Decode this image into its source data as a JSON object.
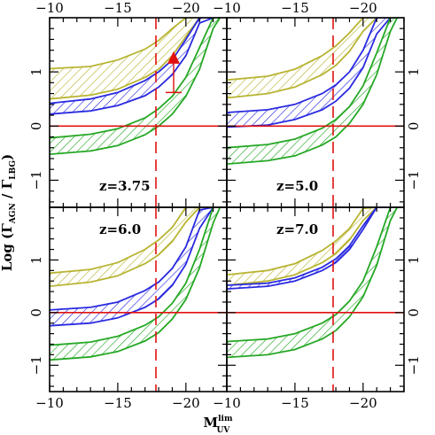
{
  "chart_data": {
    "type": "area",
    "xlabel": {
      "base": "M",
      "sup": "lim",
      "sub": "UV"
    },
    "ylabel": {
      "prefix": "Log (",
      "g1": "Γ",
      "s1": "AGN",
      "mid": " / ",
      "g2": "Γ",
      "s2": "LBG",
      "suffix": ")"
    },
    "xlim": [
      -10,
      -23
    ],
    "ylim": [
      -1.5,
      2.0
    ],
    "x_ticks": [
      -10,
      -15,
      -20
    ],
    "y_ticks": [
      -1,
      0,
      1
    ],
    "vline_x": -17.8,
    "hline_y": 0,
    "colors": {
      "yellow": "#b8b432",
      "blue": "#2a2ae0",
      "green": "#25a825",
      "red": "#e01010"
    },
    "panels": [
      {
        "label": "z=3.75",
        "series": [
          {
            "color": "yellow",
            "x": [
              -10,
              -13,
              -15,
              -17,
              -18,
              -19,
              -20,
              -21,
              -21.6
            ],
            "lower": [
              0.5,
              0.57,
              0.68,
              0.9,
              1.05,
              1.3,
              1.65,
              2.0,
              2.0
            ],
            "upper": [
              1.06,
              1.1,
              1.22,
              1.42,
              1.58,
              1.8,
              2.0,
              2.0,
              2.0
            ]
          },
          {
            "color": "blue",
            "x": [
              -10,
              -13,
              -15,
              -17,
              -18,
              -19,
              -20,
              -21,
              -22
            ],
            "lower": [
              0.22,
              0.28,
              0.38,
              0.56,
              0.72,
              0.95,
              1.3,
              1.9,
              2.0
            ],
            "upper": [
              0.42,
              0.5,
              0.62,
              0.84,
              1.0,
              1.22,
              1.6,
              2.0,
              2.0
            ]
          },
          {
            "color": "green",
            "x": [
              -10,
              -13,
              -15,
              -17,
              -18,
              -19,
              -20,
              -21,
              -22,
              -22.5
            ],
            "lower": [
              -0.52,
              -0.46,
              -0.36,
              -0.16,
              0.0,
              0.22,
              0.55,
              1.05,
              1.8,
              2.0
            ],
            "upper": [
              -0.22,
              -0.15,
              -0.05,
              0.15,
              0.32,
              0.55,
              0.9,
              1.45,
              2.0,
              2.0
            ]
          }
        ],
        "point": {
          "x": -19.1,
          "y": 1.25,
          "lower_limit": 0.62
        }
      },
      {
        "label": "z=5.0",
        "series": [
          {
            "color": "yellow",
            "x": [
              -10,
              -13,
              -15,
              -17,
              -18,
              -19,
              -20,
              -21,
              -21.6
            ],
            "lower": [
              0.52,
              0.6,
              0.72,
              0.95,
              1.12,
              1.38,
              1.75,
              2.0,
              2.0
            ],
            "upper": [
              0.85,
              0.92,
              1.05,
              1.3,
              1.48,
              1.72,
              2.0,
              2.0,
              2.0
            ]
          },
          {
            "color": "blue",
            "x": [
              -10,
              -13,
              -15,
              -17,
              -18,
              -19,
              -20,
              -21,
              -22
            ],
            "lower": [
              -0.02,
              0.02,
              0.12,
              0.3,
              0.46,
              0.7,
              1.08,
              1.7,
              2.0
            ],
            "upper": [
              0.25,
              0.3,
              0.4,
              0.6,
              0.76,
              1.0,
              1.4,
              2.0,
              2.0
            ]
          },
          {
            "color": "green",
            "x": [
              -10,
              -13,
              -15,
              -17,
              -18,
              -19,
              -20,
              -21,
              -22,
              -22.5
            ],
            "lower": [
              -0.7,
              -0.64,
              -0.55,
              -0.35,
              -0.2,
              0.05,
              0.4,
              0.95,
              1.75,
              2.0
            ],
            "upper": [
              -0.4,
              -0.34,
              -0.24,
              -0.04,
              0.12,
              0.36,
              0.74,
              1.35,
              2.0,
              2.0
            ]
          }
        ]
      },
      {
        "label": "z=6.0",
        "series": [
          {
            "color": "yellow",
            "x": [
              -10,
              -13,
              -15,
              -17,
              -18,
              -19,
              -20,
              -21,
              -21.6
            ],
            "lower": [
              0.5,
              0.58,
              0.7,
              0.93,
              1.1,
              1.35,
              1.72,
              2.0,
              2.0
            ],
            "upper": [
              0.75,
              0.82,
              0.95,
              1.2,
              1.38,
              1.62,
              2.0,
              2.0,
              2.0
            ]
          },
          {
            "color": "blue",
            "x": [
              -10,
              -13,
              -15,
              -17,
              -18,
              -19,
              -20,
              -21,
              -22
            ],
            "lower": [
              -0.25,
              -0.2,
              -0.1,
              0.1,
              0.26,
              0.52,
              0.92,
              1.6,
              2.0
            ],
            "upper": [
              0.05,
              0.1,
              0.2,
              0.42,
              0.58,
              0.84,
              1.25,
              1.95,
              2.0
            ]
          },
          {
            "color": "green",
            "x": [
              -10,
              -13,
              -15,
              -17,
              -18,
              -19,
              -20,
              -21,
              -22,
              -22.5
            ],
            "lower": [
              -0.9,
              -0.84,
              -0.74,
              -0.54,
              -0.38,
              -0.12,
              0.25,
              0.85,
              1.7,
              2.0
            ],
            "upper": [
              -0.62,
              -0.56,
              -0.45,
              -0.24,
              -0.08,
              0.18,
              0.56,
              1.2,
              2.0,
              2.0
            ]
          }
        ]
      },
      {
        "label": "z=7.0",
        "series": [
          {
            "color": "yellow",
            "x": [
              -10,
              -13,
              -15,
              -17,
              -18,
              -19,
              -20,
              -21,
              -21.6
            ],
            "lower": [
              0.52,
              0.6,
              0.72,
              0.95,
              1.12,
              1.38,
              1.75,
              2.0,
              2.0
            ],
            "upper": [
              0.72,
              0.8,
              0.93,
              1.18,
              1.36,
              1.6,
              1.98,
              2.0,
              2.0
            ]
          },
          {
            "color": "blue",
            "x": [
              -10,
              -13,
              -15,
              -17,
              -18,
              -19,
              -20,
              -21,
              -22
            ],
            "lower": [
              0.45,
              0.5,
              0.6,
              0.8,
              0.95,
              1.2,
              1.58,
              2.0,
              2.0
            ],
            "upper": [
              0.52,
              0.56,
              0.66,
              0.86,
              1.02,
              1.27,
              1.65,
              2.0,
              2.0
            ]
          },
          {
            "color": "green",
            "x": [
              -10,
              -13,
              -15,
              -17,
              -18,
              -19,
              -20,
              -21,
              -22,
              -22.5
            ],
            "lower": [
              -0.85,
              -0.8,
              -0.7,
              -0.5,
              -0.34,
              -0.08,
              0.3,
              0.9,
              1.75,
              2.0
            ],
            "upper": [
              -0.55,
              -0.5,
              -0.4,
              -0.2,
              -0.04,
              0.22,
              0.6,
              1.25,
              2.0,
              2.0
            ]
          }
        ]
      }
    ]
  }
}
